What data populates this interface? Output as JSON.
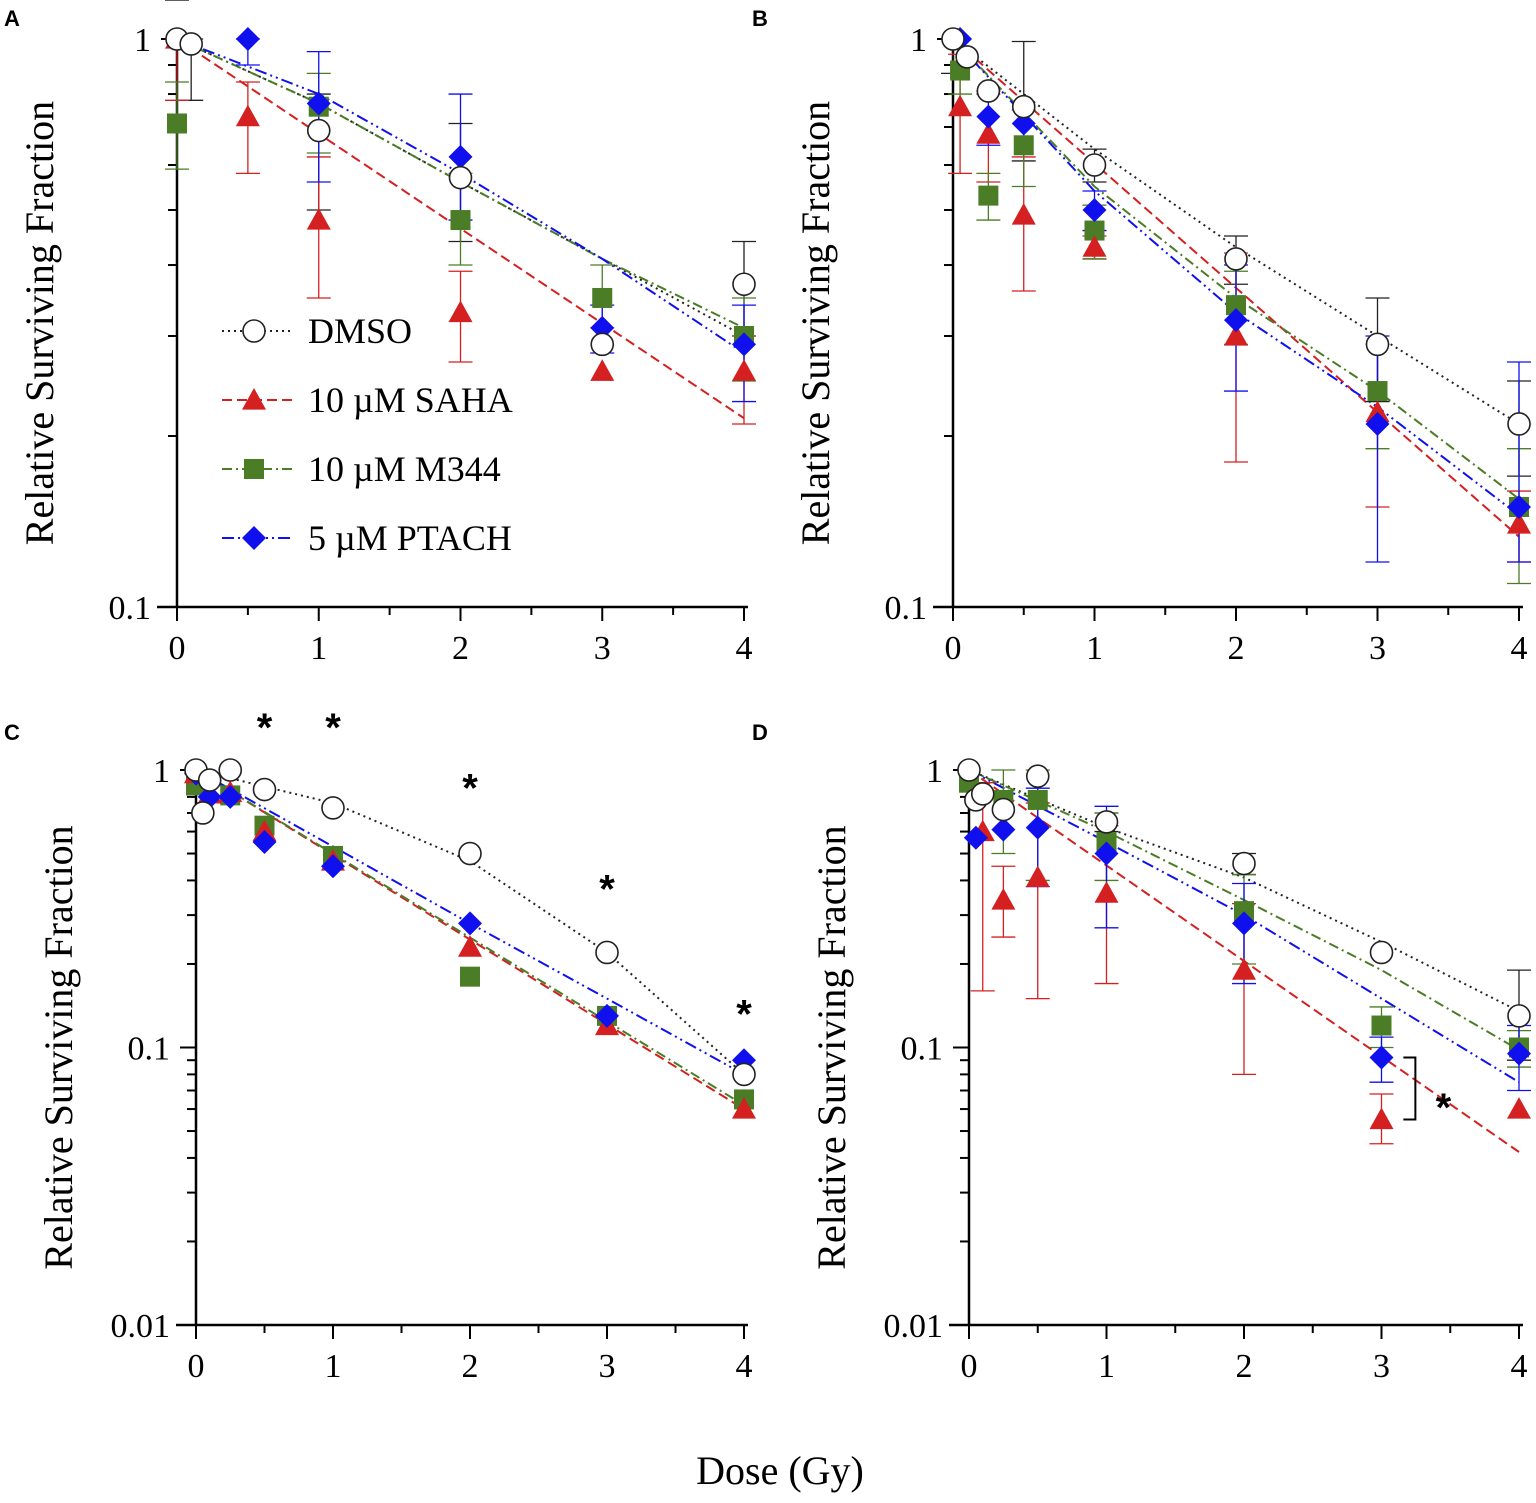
{
  "figure": {
    "xlabel": "Dose (Gy)",
    "colors": {
      "DMSO": "#222222",
      "SAHA": "#d42020",
      "M344": "#4a7d26",
      "PTACH": "#1010ee"
    }
  },
  "legend": [
    {
      "key": "DMSO",
      "label": "DMSO"
    },
    {
      "key": "SAHA",
      "label": "10 µM SAHA"
    },
    {
      "key": "M344",
      "label": "10 µM M344"
    },
    {
      "key": "PTACH",
      "label": "5 µM PTACH"
    }
  ],
  "chart_data": [
    {
      "panel": "A",
      "type": "scatter",
      "ylabel": "Relative Surviving Fraction",
      "yscale": "log",
      "ylim": [
        0.1,
        1
      ],
      "ytick_labels": [
        "0.1",
        "1"
      ],
      "xlim": [
        0,
        4
      ],
      "xtick_labels": [
        "0",
        "1",
        "2",
        "3",
        "4"
      ],
      "series": [
        {
          "name": "DMSO",
          "x": [
            0,
            0.1,
            1,
            2,
            3,
            4
          ],
          "y": [
            1.0,
            0.98,
            0.69,
            0.57,
            0.29,
            0.37
          ],
          "err": [
            [
              0,
              0
            ],
            [
              0.78,
              1.0
            ],
            [
              0.5,
              0.8
            ],
            [
              0.44,
              0.71
            ],
            null,
            [
              0.3,
              0.44
            ]
          ],
          "fit": {
            "x": [
              0,
              1,
              2,
              3,
              4
            ],
            "y": [
              1.0,
              0.77,
              0.56,
              0.41,
              0.3
            ]
          }
        },
        {
          "name": "SAHA",
          "x": [
            0,
            0.5,
            1,
            2,
            3,
            4
          ],
          "y": [
            1.0,
            0.73,
            0.48,
            0.33,
            0.26,
            0.26
          ],
          "err": [
            [
              0.78,
              1.0
            ],
            [
              0.58,
              0.84
            ],
            [
              0.35,
              0.62
            ],
            [
              0.27,
              0.39
            ],
            null,
            [
              0.21,
              0.3
            ]
          ],
          "fit": {
            "x": [
              0,
              4
            ],
            "y": [
              1.0,
              0.215
            ]
          }
        },
        {
          "name": "M344",
          "x": [
            0,
            1,
            2,
            3,
            4
          ],
          "y": [
            0.71,
            0.76,
            0.48,
            0.35,
            0.3
          ],
          "err": [
            [
              0.59,
              0.84
            ],
            [
              0.63,
              0.87
            ],
            [
              0.4,
              0.58
            ],
            [
              0.31,
              0.4
            ],
            [
              0.25,
              0.35
            ]
          ],
          "fit": {
            "x": [
              0,
              1,
              2,
              3,
              4
            ],
            "y": [
              1.0,
              0.77,
              0.56,
              0.41,
              0.31
            ]
          }
        },
        {
          "name": "PTACH",
          "x": [
            0.5,
            1,
            2,
            3,
            4
          ],
          "y": [
            1.0,
            0.77,
            0.62,
            0.31,
            0.29
          ],
          "err": [
            [
              0.9,
              1.0
            ],
            [
              0.56,
              0.95
            ],
            [
              0.48,
              0.8
            ],
            [
              0.28,
              0.34
            ],
            [
              0.23,
              0.34
            ]
          ],
          "fit": {
            "x": [
              0,
              1,
              2,
              3,
              4
            ],
            "y": [
              1.0,
              0.8,
              0.58,
              0.41,
              0.28
            ]
          }
        }
      ],
      "annotations": []
    },
    {
      "panel": "B",
      "type": "scatter",
      "ylabel": "Relative Surviving Fraction",
      "yscale": "log",
      "ylim": [
        0.1,
        1
      ],
      "ytick_labels": [
        "0.1",
        "1"
      ],
      "xlim": [
        0,
        4
      ],
      "xtick_labels": [
        "0",
        "1",
        "2",
        "3",
        "4"
      ],
      "series": [
        {
          "name": "DMSO",
          "x": [
            0,
            0.1,
            0.25,
            0.5,
            1,
            2,
            3,
            4
          ],
          "y": [
            1.0,
            0.93,
            0.81,
            0.76,
            0.6,
            0.41,
            0.29,
            0.21
          ],
          "err": [
            [
              0.87,
              1.0
            ],
            null,
            null,
            [
              0.61,
              0.99
            ],
            [
              0.56,
              0.64
            ],
            [
              0.37,
              0.45
            ],
            [
              0.23,
              0.35
            ],
            [
              0.17,
              0.25
            ]
          ],
          "fit": {
            "x": [
              0,
              1,
              2,
              3,
              4
            ],
            "y": [
              1.0,
              0.64,
              0.43,
              0.3,
              0.21
            ]
          }
        },
        {
          "name": "SAHA",
          "x": [
            0.05,
            0.25,
            0.5,
            1,
            2,
            3,
            4
          ],
          "y": [
            0.76,
            0.68,
            0.49,
            0.43,
            0.3,
            0.22,
            0.14
          ],
          "err": [
            [
              0.58,
              0.94
            ],
            [
              0.56,
              0.8
            ],
            [
              0.36,
              0.62
            ],
            [
              0.41,
              0.45
            ],
            [
              0.18,
              0.42
            ],
            [
              0.15,
              0.29
            ],
            [
              0.12,
              0.16
            ]
          ],
          "fit": {
            "x": [
              0,
              4
            ],
            "y": [
              1.0,
              0.133
            ]
          }
        },
        {
          "name": "M344",
          "x": [
            0.05,
            0.25,
            0.5,
            1,
            2,
            3,
            4
          ],
          "y": [
            0.88,
            0.53,
            0.65,
            0.46,
            0.34,
            0.24,
            0.15
          ],
          "err": [
            [
              0.8,
              0.96
            ],
            [
              0.48,
              0.58
            ],
            [
              0.55,
              0.75
            ],
            [
              0.41,
              0.51
            ],
            [
              0.29,
              0.39
            ],
            [
              0.19,
              0.29
            ],
            [
              0.11,
              0.19
            ]
          ],
          "fit": {
            "x": [
              0,
              1,
              2,
              3,
              4
            ],
            "y": [
              1.0,
              0.55,
              0.35,
              0.24,
              0.155
            ]
          }
        },
        {
          "name": "PTACH",
          "x": [
            0.05,
            0.25,
            0.5,
            1,
            2,
            3,
            4
          ],
          "y": [
            1.0,
            0.73,
            0.71,
            0.5,
            0.32,
            0.21,
            0.15
          ],
          "err": [
            null,
            [
              0.65,
              0.81
            ],
            null,
            [
              0.46,
              0.54
            ],
            [
              0.24,
              0.4
            ],
            [
              0.12,
              0.3
            ],
            [
              0.12,
              0.27
            ]
          ],
          "fit": {
            "x": [
              0,
              1,
              2,
              3,
              4
            ],
            "y": [
              1.0,
              0.54,
              0.33,
              0.225,
              0.145
            ]
          }
        }
      ],
      "annotations": []
    },
    {
      "panel": "C",
      "type": "scatter",
      "ylabel": "Relative Surviving Fraction",
      "yscale": "log",
      "ylim": [
        0.01,
        1
      ],
      "ytick_labels": [
        "0.01",
        "0.1",
        "1"
      ],
      "xlim": [
        0,
        4
      ],
      "xtick_labels": [
        "0",
        "1",
        "2",
        "3",
        "4"
      ],
      "series": [
        {
          "name": "DMSO",
          "x": [
            0,
            0.05,
            0.1,
            0.25,
            0.5,
            1,
            2,
            3,
            4
          ],
          "y": [
            1.0,
            0.7,
            0.92,
            1.0,
            0.85,
            0.73,
            0.5,
            0.22,
            0.08
          ],
          "err": [
            null,
            null,
            null,
            null,
            null,
            null,
            null,
            null,
            null
          ],
          "fit": {
            "x": [
              0,
              1,
              2,
              3,
              4
            ],
            "y": [
              1.0,
              0.76,
              0.47,
              0.22,
              0.08
            ]
          }
        },
        {
          "name": "SAHA",
          "x": [
            0,
            0.1,
            0.25,
            0.5,
            1,
            2,
            3,
            4
          ],
          "y": [
            0.97,
            0.82,
            0.83,
            0.6,
            0.47,
            0.23,
            0.12,
            0.06
          ],
          "err": [
            null,
            null,
            null,
            null,
            null,
            null,
            null,
            null
          ],
          "fit": {
            "x": [
              0,
              4
            ],
            "y": [
              1.0,
              0.06
            ]
          }
        },
        {
          "name": "M344",
          "x": [
            0,
            0.25,
            0.5,
            1,
            2,
            3,
            4
          ],
          "y": [
            0.88,
            0.81,
            0.63,
            0.49,
            0.18,
            0.13,
            0.065
          ],
          "err": [
            null,
            null,
            null,
            null,
            null,
            null,
            null
          ],
          "fit": {
            "x": [
              0,
              4
            ],
            "y": [
              1.0,
              0.062
            ]
          }
        },
        {
          "name": "PTACH",
          "x": [
            0,
            0.1,
            0.25,
            0.5,
            1,
            2,
            3,
            4
          ],
          "y": [
            0.97,
            0.8,
            0.8,
            0.55,
            0.45,
            0.28,
            0.13,
            0.09
          ],
          "err": [
            null,
            null,
            null,
            null,
            null,
            null,
            null,
            null
          ],
          "fit": {
            "x": [
              0,
              1,
              2,
              3,
              4
            ],
            "y": [
              1.0,
              0.53,
              0.28,
              0.15,
              0.08
            ]
          }
        }
      ],
      "annotations": [
        {
          "text": "*",
          "x": 0.5,
          "y": 1.45
        },
        {
          "text": "*",
          "x": 1,
          "y": 1.45
        },
        {
          "text": "*",
          "x": 2,
          "y": 0.88
        },
        {
          "text": "*",
          "x": 3,
          "y": 0.38
        },
        {
          "text": "*",
          "x": 4,
          "y": 0.135
        }
      ]
    },
    {
      "panel": "D",
      "type": "scatter",
      "ylabel": "Relative Surviving Fraction",
      "yscale": "log",
      "ylim": [
        0.01,
        1
      ],
      "ytick_labels": [
        "0.01",
        "0.1",
        "1"
      ],
      "xlim": [
        0,
        4
      ],
      "xtick_labels": [
        "0",
        "1",
        "2",
        "3",
        "4"
      ],
      "series": [
        {
          "name": "DMSO",
          "x": [
            0,
            0.05,
            0.1,
            0.25,
            0.5,
            1,
            2,
            3,
            4
          ],
          "y": [
            1.0,
            0.78,
            0.82,
            0.72,
            0.95,
            0.65,
            0.46,
            0.22,
            0.13
          ],
          "err": [
            null,
            null,
            null,
            null,
            null,
            [
              0.6,
              0.7
            ],
            [
              0.42,
              0.5
            ],
            null,
            [
              0.09,
              0.19
            ]
          ],
          "fit": {
            "x": [
              0,
              1,
              2,
              3,
              4
            ],
            "y": [
              1.0,
              0.62,
              0.41,
              0.24,
              0.135
            ]
          }
        },
        {
          "name": "SAHA",
          "x": [
            0.1,
            0.25,
            0.5,
            1,
            2,
            3,
            4
          ],
          "y": [
            0.6,
            0.34,
            0.41,
            0.36,
            0.19,
            0.055,
            0.06
          ],
          "err": [
            [
              0.16,
              0.9
            ],
            [
              0.25,
              0.45
            ],
            [
              0.15,
              0.76
            ],
            [
              0.17,
              0.63
            ],
            [
              0.08,
              0.33
            ],
            [
              0.045,
              0.068
            ],
            null
          ],
          "fit": {
            "x": [
              0,
              4
            ],
            "y": [
              1.0,
              0.042
            ]
          }
        },
        {
          "name": "M344",
          "x": [
            0,
            0.25,
            0.5,
            1,
            2,
            3,
            4
          ],
          "y": [
            0.9,
            0.78,
            0.78,
            0.55,
            0.31,
            0.12,
            0.1
          ],
          "err": [
            null,
            [
              0.5,
              1.0
            ],
            [
              0.4,
              1.0
            ],
            [
              0.4,
              0.7
            ],
            [
              0.2,
              0.42
            ],
            [
              0.1,
              0.14
            ],
            [
              0.085,
              0.115
            ]
          ],
          "fit": {
            "x": [
              0,
              1,
              2,
              3,
              4
            ],
            "y": [
              1.0,
              0.6,
              0.34,
              0.19,
              0.098
            ]
          }
        },
        {
          "name": "PTACH",
          "x": [
            0.05,
            0.25,
            0.5,
            1,
            2,
            3,
            4
          ],
          "y": [
            0.57,
            0.61,
            0.62,
            0.5,
            0.28,
            0.092,
            0.095
          ],
          "err": [
            null,
            null,
            [
              0.38,
              0.86
            ],
            [
              0.27,
              0.74
            ],
            [
              0.17,
              0.39
            ],
            [
              0.075,
              0.109
            ],
            [
              0.07,
              0.12
            ]
          ],
          "fit": {
            "x": [
              0,
              1,
              2,
              3,
              4
            ],
            "y": [
              1.0,
              0.55,
              0.3,
              0.15,
              0.075
            ]
          }
        }
      ],
      "annotations": [
        {
          "text": "*",
          "x": 3.45,
          "y": 0.062,
          "bracket": [
            0.092,
            0.055
          ]
        }
      ]
    }
  ]
}
